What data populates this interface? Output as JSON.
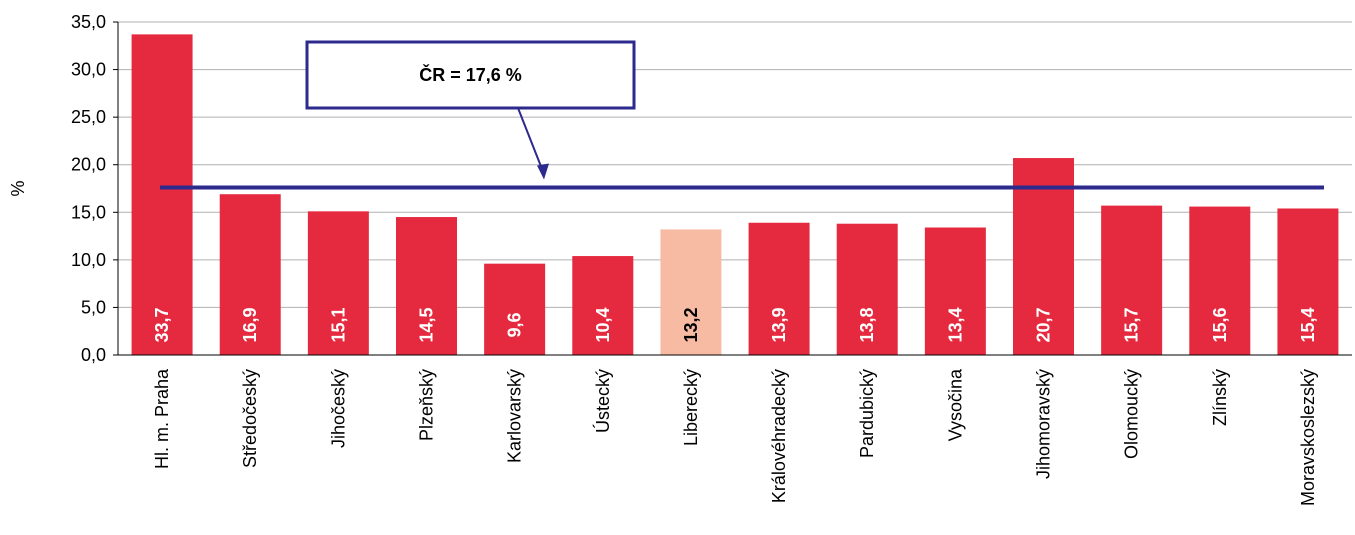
{
  "chart_data": {
    "type": "bar",
    "categories": [
      "Hl. m. Praha",
      "Středočeský",
      "Jihočeský",
      "Plzeňský",
      "Karlovarský",
      "Ústecký",
      "Liberecký",
      "Královéhradecký",
      "Pardubický",
      "Vysočina",
      "Jihomoravský",
      "Olomoucký",
      "Zlínský",
      "Moravskoslezský"
    ],
    "values": [
      33.7,
      16.9,
      15.1,
      14.5,
      9.6,
      10.4,
      13.2,
      13.9,
      13.8,
      13.4,
      20.7,
      15.7,
      15.6,
      15.4
    ],
    "value_labels": [
      "33,7",
      "16,9",
      "15,1",
      "14,5",
      "9,6",
      "10,4",
      "13,2",
      "13,9",
      "13,8",
      "13,4",
      "20,7",
      "15,7",
      "15,6",
      "15,4"
    ],
    "highlight_index": 6,
    "ylabel": "%",
    "ylim": [
      0,
      35
    ],
    "yticks": [
      0,
      5,
      10,
      15,
      20,
      25,
      30,
      35
    ],
    "ytick_labels": [
      "0,0",
      "5,0",
      "10,0",
      "15,0",
      "20,0",
      "25,0",
      "30,0",
      "35,0"
    ],
    "grid": true,
    "reference_line": {
      "value": 17.6,
      "label": "ČR = 17,6 %"
    },
    "colors": {
      "bar": "#e52a3f",
      "highlight_bar": "#f7bba4",
      "reference_line": "#2c2a8c",
      "grid": "#b0b0b0",
      "value_label": "#ffffff",
      "highlight_value_label": "#000000"
    }
  }
}
